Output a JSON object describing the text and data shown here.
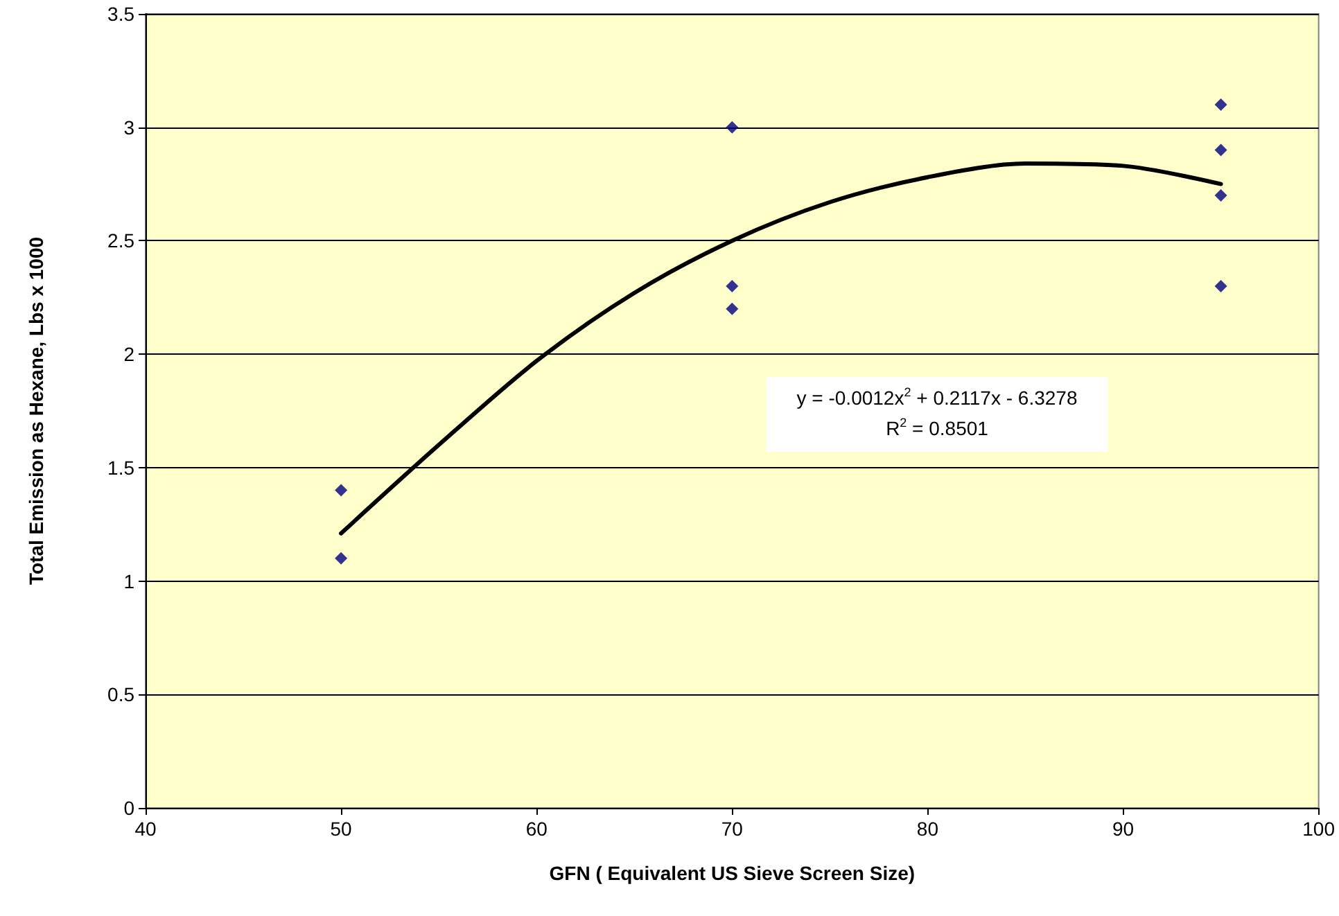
{
  "chart_data": {
    "type": "scatter",
    "xlabel": "GFN ( Equivalent US Sieve Screen Size)",
    "ylabel": "Total Emission as Hexane, Lbs x 1000",
    "series": [
      {
        "color": "#000080",
        "marker": "diamond",
        "x": [
          50,
          50,
          70,
          70,
          70,
          95,
          95,
          95,
          95
        ],
        "values": [
          1.4,
          1.1,
          3.0,
          2.3,
          2.2,
          3.1,
          2.9,
          2.7,
          2.3
        ]
      },
      {
        "type": "line",
        "color": "#000000",
        "marker": "none",
        "x": [
          50,
          55,
          60,
          65,
          70,
          75,
          80,
          85,
          90,
          95
        ],
        "values": [
          1.21,
          1.6,
          1.97,
          2.27,
          2.5,
          2.67,
          2.78,
          2.84,
          2.83,
          2.75
        ]
      }
    ],
    "annotations": [
      "y = -0.0012x$^{2}$ + 0.2117x - 6.3278",
      "R$^{2}$ = 0.8501"
    ],
    "xlim": [
      40,
      100
    ],
    "xticks": [
      40,
      50,
      60,
      70,
      80,
      90,
      100
    ],
    "ylim": [
      0,
      3.5
    ],
    "yticks": [
      0,
      0.5,
      1,
      1.5,
      2,
      2.5,
      3,
      3.5
    ],
    "grid": "y"
  }
}
